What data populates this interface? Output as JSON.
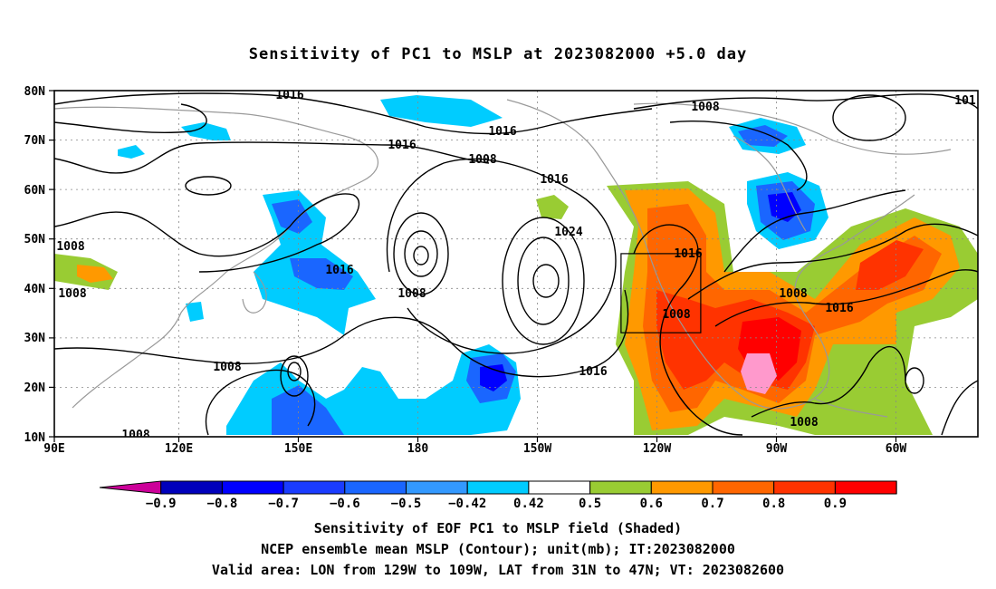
{
  "title": "Sensitivity of PC1 to MSLP at 2023082000 +5.0 day",
  "map": {
    "lat_labels": [
      "80N",
      "70N",
      "60N",
      "50N",
      "40N",
      "30N",
      "20N",
      "10N"
    ],
    "lon_labels": [
      "90E",
      "120E",
      "150E",
      "180",
      "150W",
      "120W",
      "90W",
      "60W"
    ],
    "contour_labels": [
      {
        "text": "1016"
      },
      {
        "text": "1016"
      },
      {
        "text": "1016"
      },
      {
        "text": "1008"
      },
      {
        "text": "1016"
      },
      {
        "text": "1024"
      },
      {
        "text": "1008"
      },
      {
        "text": "1008"
      },
      {
        "text": "1016"
      },
      {
        "text": "1016"
      },
      {
        "text": "1008"
      },
      {
        "text": "1016"
      },
      {
        "text": "1008"
      },
      {
        "text": "1008"
      },
      {
        "text": "1008"
      },
      {
        "text": "1008"
      },
      {
        "text": "101"
      },
      {
        "text": "1008"
      }
    ],
    "valid_box": {
      "lon_from": "129W",
      "lon_to": "109W",
      "lat_from": "31N",
      "lat_to": "47N"
    }
  },
  "colorbar": {
    "labels": [
      "-0.9",
      "-0.8",
      "-0.7",
      "-0.6",
      "-0.5",
      "-0.42",
      "0.42",
      "0.5",
      "0.6",
      "0.7",
      "0.8",
      "0.9"
    ],
    "colors": [
      "#cc0099",
      "#0000bb",
      "#0000ff",
      "#1a3cff",
      "#1a66ff",
      "#3399ff",
      "#00ccff",
      "#ffffff",
      "#99cc33",
      "#ff9900",
      "#ff6600",
      "#ff3300",
      "#ff0000",
      "#ff99cc"
    ]
  },
  "captions": {
    "line1": "Sensitivity of EOF PC1 to MSLP field (Shaded)",
    "line2": "NCEP ensemble mean MSLP (Contour); unit(mb); IT:2023082000",
    "line3": "Valid area: LON from 129W to 109W, LAT from 31N to 47N; VT: 2023082600"
  }
}
